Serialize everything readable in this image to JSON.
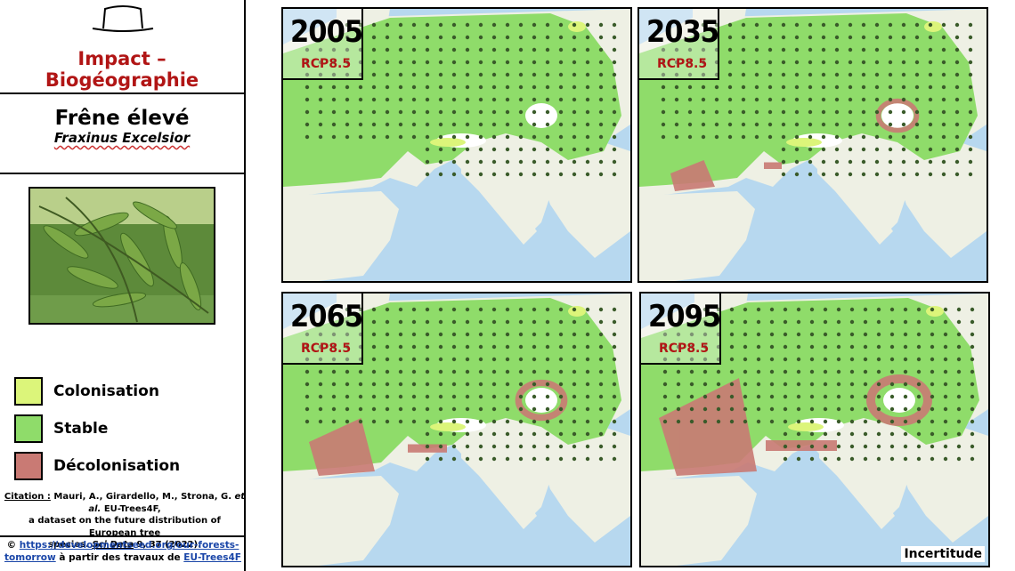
{
  "header": {
    "title": "Impact – Biogéographie",
    "hat_icon": "hat-icon"
  },
  "species": {
    "common_name": "Frêne élevé",
    "latin_name": "Fraxinus Excelsior",
    "photo_icon": "ash-leaves-photo"
  },
  "legend": {
    "items": [
      {
        "label": "Colonisation",
        "color": "#dcf57a"
      },
      {
        "label": "Stable",
        "color": "#8fdc6a"
      },
      {
        "label": "Décolonisation",
        "color": "#c97a74"
      }
    ]
  },
  "citation": {
    "prefix": "Citation :",
    "authors": "Mauri, A., Girardello, M., Strona, G.",
    "etal": "et al.",
    "title_part1": "EU-Trees4F,",
    "title_part2": "a dataset on the future distribution of European tree",
    "title_part3": "species.",
    "journal": "Sci Data",
    "volume": "9, 37 (2022)."
  },
  "credit": {
    "symbol": "©",
    "url_part1": "https://developmentseed.org/our-forests-",
    "url_part2": "tomorrow",
    "middle": "à partir des travaux de",
    "source": "EU-Trees4F"
  },
  "maps": [
    {
      "year": "2005",
      "scenario": "RCP8.5",
      "decolonisation_level": 0.0
    },
    {
      "year": "2035",
      "scenario": "RCP8.5",
      "decolonisation_level": 0.25
    },
    {
      "year": "2065",
      "scenario": "RCP8.5",
      "decolonisation_level": 0.55
    },
    {
      "year": "2095",
      "scenario": "RCP8.5",
      "decolonisation_level": 1.0
    }
  ],
  "uncertainty_label": "Incertitude",
  "colors": {
    "sea": "#b7d8ef",
    "land": "#eef0e4",
    "stable": "#8fdc6a",
    "decolonisation": "#c97a74",
    "colonisation": "#dcf57a",
    "accent_red": "#b11515"
  }
}
